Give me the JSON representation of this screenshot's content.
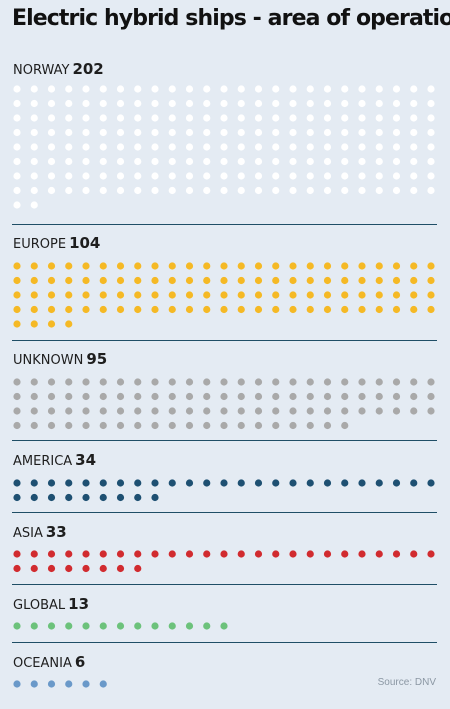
{
  "title": "Electric hybrid ships - area of operation",
  "source": "Source: DNV",
  "chart_data": {
    "type": "waffle",
    "title": "Electric hybrid ships - area of operation",
    "categories": [
      "NORWAY",
      "EUROPE",
      "UNKNOWN",
      "AMERICA",
      "ASIA",
      "GLOBAL",
      "OCEANIA"
    ],
    "values": [
      202,
      104,
      95,
      34,
      33,
      13,
      6
    ],
    "units_per_dot": 1,
    "colors": [
      "#ffffff",
      "#f5b925",
      "#a9a9a9",
      "#1e5072",
      "#d12b2f",
      "#6cc27b",
      "#6a99c9"
    ],
    "categories_display": [
      {
        "name": "NORWAY",
        "value": "202"
      },
      {
        "name": "EUROPE",
        "value": "104"
      },
      {
        "name": "UNKNOWN",
        "value": "95"
      },
      {
        "name": "AMERICA",
        "value": "34"
      },
      {
        "name": "ASIA",
        "value": "33"
      },
      {
        "name": "GLOBAL",
        "value": "13"
      },
      {
        "name": "OCEANIA",
        "value": "6"
      }
    ]
  }
}
